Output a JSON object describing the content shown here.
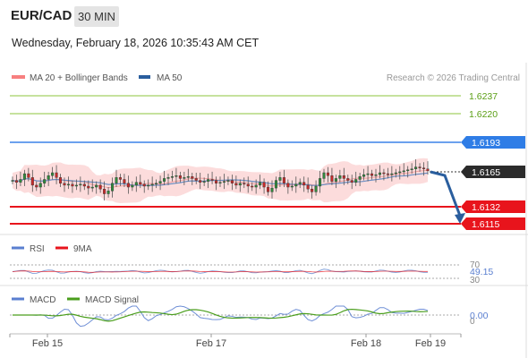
{
  "header": {
    "pair": "EUR/CAD",
    "timeframe": "30 MIN",
    "datetime": "Wednesday, February 18, 2026 10:35:43 AM CET"
  },
  "price_panel": {
    "legend": [
      {
        "label": "MA 20 + Bollinger Bands",
        "color": "#f77f7f"
      },
      {
        "label": "MA 50",
        "color": "#2a5e9e"
      }
    ],
    "credit": "Research © 2026 Trading Central",
    "levels": [
      {
        "value": "1.6237",
        "color": "#8cc63e",
        "kind": "target"
      },
      {
        "value": "1.6220",
        "color": "#8cc63e",
        "kind": "target"
      },
      {
        "value": "1.6193",
        "color": "#3c82e8",
        "kind": "pivot"
      },
      {
        "value": "1.6165",
        "color": "#222222",
        "kind": "last"
      },
      {
        "value": "1.6132",
        "color": "#e8141c",
        "kind": "support"
      },
      {
        "value": "1.6115",
        "color": "#e8141c",
        "kind": "support"
      }
    ]
  },
  "rsi_panel": {
    "legend": [
      {
        "label": "RSI",
        "color": "#5a7fd0"
      },
      {
        "label": "9MA",
        "color": "#e8141c"
      }
    ],
    "ticks": [
      "70",
      "30"
    ],
    "value": "49.15"
  },
  "macd_panel": {
    "legend": [
      {
        "label": "MACD",
        "color": "#5a7fd0"
      },
      {
        "label": "MACD Signal",
        "color": "#4a9e1c"
      }
    ],
    "ticks": [
      "0"
    ],
    "value": "0.00"
  },
  "x_axis": {
    "labels": [
      "Feb 15",
      "Feb 17",
      "Feb 18",
      "Feb 19"
    ]
  },
  "chart_data": {
    "type": "candlestick",
    "symbol": "EUR/CAD",
    "interval": "30 MIN",
    "x_labels": [
      "Feb 15",
      "Feb 17",
      "Feb 18",
      "Feb 19"
    ],
    "price_range": [
      1.6105,
      1.625
    ],
    "close_series_approx": [
      1.6155,
      1.6153,
      1.6156,
      1.6162,
      1.6158,
      1.615,
      1.6148,
      1.6152,
      1.6156,
      1.616,
      1.6163,
      1.6158,
      1.6152,
      1.615,
      1.6151,
      1.6149,
      1.615,
      1.6151,
      1.6149,
      1.6147,
      1.6148,
      1.615,
      1.6146,
      1.6141,
      1.6144,
      1.6152,
      1.6158,
      1.6156,
      1.6152,
      1.6148,
      1.615,
      1.6153,
      1.6151,
      1.6149,
      1.615,
      1.6151,
      1.6152,
      1.6154,
      1.6157,
      1.6158,
      1.6159,
      1.616,
      1.6157,
      1.6158,
      1.6159,
      1.6157,
      1.6155,
      1.6153,
      1.6154,
      1.6156,
      1.6155,
      1.6152,
      1.6153,
      1.6154,
      1.6155,
      1.6152,
      1.615,
      1.6152,
      1.6151,
      1.6149,
      1.6148,
      1.615,
      1.6153,
      1.6148,
      1.6143,
      1.6147,
      1.6155,
      1.6158,
      1.6152,
      1.6148,
      1.6149,
      1.6151,
      1.6153,
      1.615,
      1.6146,
      1.6143,
      1.6149,
      1.6157,
      1.6163,
      1.616,
      1.6154,
      1.6157,
      1.616,
      1.6157,
      1.6155,
      1.6153,
      1.6156,
      1.6159,
      1.6161,
      1.6162,
      1.616,
      1.6161,
      1.6163,
      1.6162,
      1.6161,
      1.6162,
      1.6163,
      1.6164,
      1.6165,
      1.6166,
      1.6167,
      1.6169,
      1.6168,
      1.6167,
      1.6165
    ],
    "rsi_value": 49.15,
    "rsi_levels": [
      70,
      30
    ],
    "macd_value": 0.0,
    "projection": {
      "from": 1.6165,
      "to": 1.6115,
      "direction": "down"
    }
  }
}
